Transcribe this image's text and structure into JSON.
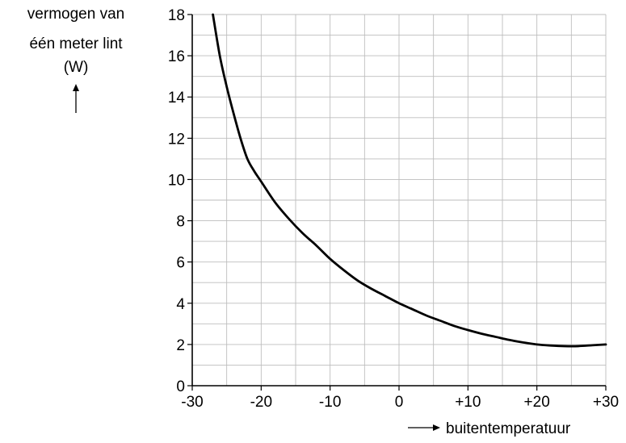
{
  "chart_data": {
    "type": "line",
    "ylabel_lines": [
      "vermogen van",
      "één meter lint",
      "(W)"
    ],
    "xlabel": "buitentemperatuur",
    "xlim": [
      -30,
      30
    ],
    "ylim": [
      0,
      18
    ],
    "grid": true,
    "x_ticks": [
      -30,
      -20,
      -10,
      0,
      10,
      20,
      30
    ],
    "x_tick_labels": [
      "-30",
      "-20",
      "-10",
      "0",
      "+10",
      "+20",
      "+30"
    ],
    "y_ticks": [
      0,
      2,
      4,
      6,
      8,
      10,
      12,
      14,
      16,
      18
    ],
    "y_tick_labels": [
      "0",
      "2",
      "4",
      "6",
      "8",
      "10",
      "12",
      "14",
      "16",
      "18"
    ],
    "series": [
      {
        "color": "#000000",
        "x": [
          -27,
          -26,
          -25,
          -24,
          -23,
          -22,
          -21,
          -20,
          -18,
          -16,
          -14,
          -12,
          -10,
          -8,
          -6,
          -4,
          -2,
          0,
          2,
          4,
          6,
          8,
          10,
          12,
          14,
          16,
          18,
          20,
          22,
          24,
          26,
          28,
          30
        ],
        "y": [
          18,
          16.0,
          14.5,
          13.2,
          12.0,
          11.0,
          10.4,
          9.9,
          8.9,
          8.1,
          7.4,
          6.8,
          6.15,
          5.6,
          5.1,
          4.7,
          4.35,
          4.0,
          3.7,
          3.4,
          3.15,
          2.9,
          2.7,
          2.52,
          2.37,
          2.22,
          2.1,
          2.0,
          1.95,
          1.92,
          1.92,
          1.96,
          2.0
        ]
      }
    ]
  }
}
